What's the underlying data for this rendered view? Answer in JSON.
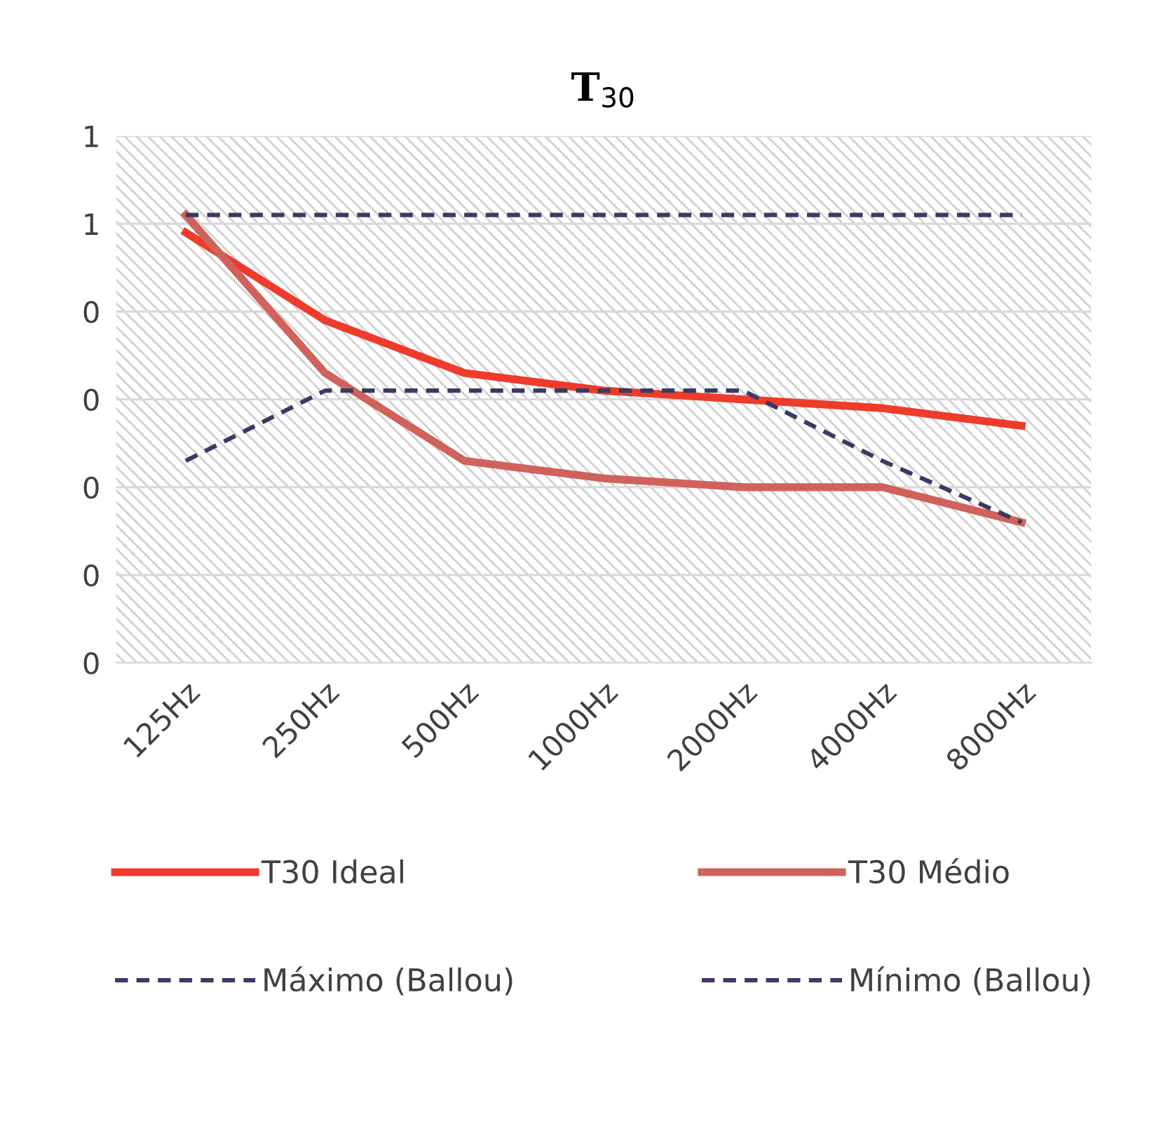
{
  "chart_data": {
    "type": "line",
    "title": "T$_{30}$",
    "categories": [
      "125Hz",
      "250Hz",
      "500Hz",
      "1000Hz",
      "2000Hz",
      "4000Hz",
      "8000Hz"
    ],
    "series": [
      {
        "name": "T30 Ideal",
        "color": "#ee3b2b",
        "line_style": "solid",
        "values": [
          0.49,
          0.39,
          0.33,
          0.31,
          0.3,
          0.29,
          0.27
        ]
      },
      {
        "name": "T30 Médio",
        "color": "#d0625c",
        "line_style": "solid",
        "values": [
          0.51,
          0.33,
          0.23,
          0.21,
          0.2,
          0.2,
          0.16
        ]
      },
      {
        "name": "Máximo (Ballou)",
        "color": "#3b3a63",
        "line_style": "dashed",
        "values": [
          0.51,
          0.51,
          0.51,
          0.51,
          0.51,
          0.51,
          0.51
        ]
      },
      {
        "name": "Mínimo (Ballou)",
        "color": "#3b3a63",
        "line_style": "dashed",
        "values": [
          0.23,
          0.31,
          0.31,
          0.31,
          0.31,
          0.23,
          0.16
        ]
      }
    ],
    "ylim": [
      0,
      0.6
    ],
    "yticks": [
      0,
      {
        "value": 0.1,
        "label": "0"
      },
      {
        "value": 0.2,
        "label": "0"
      },
      {
        "value": 0.3,
        "label": "0"
      },
      {
        "value": 0.4,
        "label": "0"
      },
      {
        "value": 0.5,
        "label": "1"
      },
      {
        "value": 0.6,
        "label": "1"
      }
    ],
    "grid": "y",
    "legend": "bottom",
    "marker": "none"
  }
}
